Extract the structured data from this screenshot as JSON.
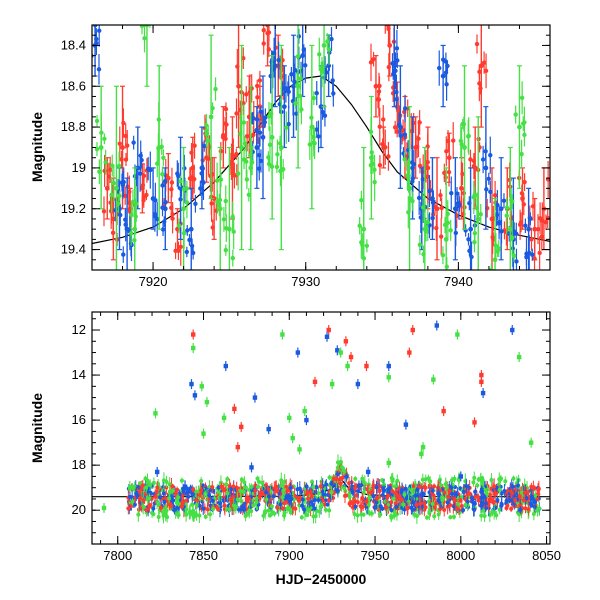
{
  "colors": {
    "red": "#ff3b2f",
    "blue": "#1a5ae0",
    "green": "#44e044",
    "model": "#000000",
    "frame": "#000000"
  },
  "chart_data": [
    {
      "type": "scatter",
      "name": "zoom-panel",
      "xlabel": "",
      "ylabel": "Magnitude",
      "xlim": [
        7916,
        7946
      ],
      "ylim": [
        18.3,
        19.5
      ],
      "y_inverted": true,
      "x_ticks": [
        7920,
        7930,
        7940
      ],
      "x_ticklabels": [
        "7920",
        "7930",
        "7940"
      ],
      "y_ticks": [
        18.4,
        18.6,
        18.8,
        19,
        19.2,
        19.4
      ],
      "y_ticklabels": [
        "18.4",
        "18.6",
        "18.8",
        "19",
        "19.2",
        "19.4"
      ],
      "model_curve": {
        "x": [
          7916,
          7918,
          7920,
          7922,
          7924,
          7926,
          7927,
          7928,
          7929,
          7930,
          7931,
          7932,
          7933,
          7934,
          7935,
          7936,
          7938,
          7940,
          7942,
          7944,
          7946
        ],
        "y": [
          19.37,
          19.34,
          19.29,
          19.2,
          19.07,
          18.9,
          18.79,
          18.68,
          18.6,
          18.56,
          18.55,
          18.6,
          18.69,
          18.8,
          18.92,
          19.02,
          19.15,
          19.23,
          19.29,
          19.33,
          19.36
        ]
      },
      "series": [
        {
          "color": "red",
          "points": [
            [
              7917.0,
              19.1,
              0.15
            ],
            [
              7917.4,
              19.25,
              0.2
            ],
            [
              7918.0,
              18.9,
              0.3
            ],
            [
              7918.5,
              19.2,
              0.1
            ],
            [
              7919.3,
              19.1,
              0.12
            ],
            [
              7921.0,
              19.05,
              0.12
            ],
            [
              7921.6,
              19.3,
              0.1
            ],
            [
              7922.6,
              19.0,
              0.15
            ],
            [
              7923.5,
              18.95,
              0.12
            ],
            [
              7924.0,
              19.15,
              0.2
            ],
            [
              7924.6,
              18.85,
              0.15
            ],
            [
              7925.2,
              19.0,
              0.25
            ],
            [
              7925.6,
              18.6,
              0.3
            ],
            [
              7926.3,
              18.75,
              0.2
            ],
            [
              7927.0,
              18.7,
              0.1
            ],
            [
              7927.5,
              18.3,
              0.2
            ],
            [
              7928.2,
              18.5,
              0.15
            ],
            [
              7934.6,
              18.6,
              0.15
            ],
            [
              7935.1,
              18.9,
              0.1
            ],
            [
              7935.5,
              18.4,
              0.15
            ],
            [
              7936.0,
              18.7,
              0.12
            ],
            [
              7936.5,
              18.85,
              0.2
            ],
            [
              7937.2,
              18.9,
              0.15
            ],
            [
              7938.0,
              19.0,
              0.2
            ],
            [
              7938.6,
              19.2,
              0.25
            ],
            [
              7939.4,
              18.95,
              0.12
            ],
            [
              7940.2,
              19.1,
              0.15
            ],
            [
              7941.1,
              19.0,
              0.2
            ],
            [
              7941.5,
              18.5,
              0.3
            ],
            [
              7942.2,
              19.25,
              0.25
            ],
            [
              7943.2,
              19.2,
              0.2
            ],
            [
              7944.2,
              19.15,
              0.15
            ],
            [
              7945.0,
              19.3,
              0.15
            ],
            [
              7945.6,
              19.2,
              0.2
            ]
          ]
        },
        {
          "color": "blue",
          "points": [
            [
              7916.2,
              18.4,
              0.15
            ],
            [
              7917.8,
              19.2,
              0.2
            ],
            [
              7918.3,
              19.3,
              0.25
            ],
            [
              7919.0,
              19.0,
              0.2
            ],
            [
              7920.0,
              19.15,
              0.15
            ],
            [
              7920.8,
              19.2,
              0.2
            ],
            [
              7921.8,
              19.1,
              0.25
            ],
            [
              7922.5,
              19.3,
              0.2
            ],
            [
              7923.2,
              19.0,
              0.2
            ],
            [
              7926.8,
              18.9,
              0.2
            ],
            [
              7927.2,
              18.85,
              0.3
            ],
            [
              7928.0,
              18.5,
              0.2
            ],
            [
              7928.6,
              18.7,
              0.2
            ],
            [
              7929.2,
              18.6,
              0.25
            ],
            [
              7929.8,
              18.45,
              0.2
            ],
            [
              7931.0,
              18.7,
              0.2
            ],
            [
              7931.5,
              18.5,
              0.15
            ],
            [
              7935.8,
              18.5,
              0.2
            ],
            [
              7936.2,
              18.8,
              0.3
            ],
            [
              7937.0,
              19.0,
              0.25
            ],
            [
              7937.6,
              19.2,
              0.2
            ],
            [
              7938.3,
              19.15,
              0.2
            ],
            [
              7939.0,
              18.55,
              0.15
            ],
            [
              7939.8,
              19.2,
              0.25
            ],
            [
              7940.8,
              19.3,
              0.3
            ],
            [
              7941.8,
              19.0,
              0.3
            ],
            [
              7942.8,
              19.2,
              0.25
            ],
            [
              7943.6,
              19.35,
              0.3
            ],
            [
              7944.6,
              19.3,
              0.2
            ]
          ]
        },
        {
          "color": "green",
          "points": [
            [
              7916.6,
              18.9,
              0.3
            ],
            [
              7917.6,
              19.1,
              0.5
            ],
            [
              7918.8,
              19.3,
              0.3
            ],
            [
              7919.6,
              18.3,
              0.3
            ],
            [
              7920.4,
              18.9,
              0.4
            ],
            [
              7922.0,
              19.2,
              0.3
            ],
            [
              7923.8,
              18.75,
              0.4
            ],
            [
              7924.4,
              19.2,
              0.3
            ],
            [
              7925.0,
              19.3,
              0.4
            ],
            [
              7925.8,
              18.9,
              0.5
            ],
            [
              7926.4,
              19.0,
              0.4
            ],
            [
              7927.8,
              18.85,
              0.4
            ],
            [
              7928.4,
              18.9,
              0.5
            ],
            [
              7929.5,
              18.6,
              0.4
            ],
            [
              7930.4,
              18.8,
              0.4
            ],
            [
              7931.2,
              18.4,
              0.3
            ],
            [
              7933.8,
              19.3,
              0.4
            ],
            [
              7934.3,
              18.95,
              0.3
            ],
            [
              7936.8,
              19.1,
              0.4
            ],
            [
              7937.8,
              19.3,
              0.4
            ],
            [
              7939.2,
              19.35,
              0.35
            ],
            [
              7940.4,
              18.9,
              0.4
            ],
            [
              7941.3,
              19.25,
              0.5
            ],
            [
              7942.4,
              19.45,
              0.3
            ],
            [
              7943.4,
              19.3,
              0.4
            ],
            [
              7944.0,
              18.8,
              0.3
            ]
          ]
        }
      ]
    },
    {
      "type": "scatter",
      "name": "full-panel",
      "xlabel": "HJD−2450000",
      "ylabel": "Magnitude",
      "xlim": [
        7785,
        8052
      ],
      "ylim": [
        11.2,
        21.5
      ],
      "y_inverted": true,
      "x_ticks": [
        7800,
        7850,
        7900,
        7950,
        8000,
        8050
      ],
      "x_ticklabels": [
        "7800",
        "7850",
        "7900",
        "7950",
        "8000",
        "8050"
      ],
      "y_ticks": [
        12,
        14,
        16,
        18,
        20
      ],
      "y_ticklabels": [
        "12",
        "14",
        "16",
        "18",
        "20"
      ],
      "model_curve": {
        "x": [
          7785,
          7850,
          7900,
          7915,
          7925,
          7930,
          7935,
          7945,
          7960,
          8000,
          8052
        ],
        "y": [
          19.4,
          19.4,
          19.38,
          19.3,
          19.05,
          18.6,
          19.05,
          19.3,
          19.38,
          19.4,
          19.4
        ]
      },
      "outliers": {
        "red": [
          [
            7844,
            12.2
          ],
          [
            7868,
            15.5
          ],
          [
            7872,
            16.3
          ],
          [
            7923,
            12.0
          ],
          [
            7933,
            12.5
          ],
          [
            7936,
            13.2
          ],
          [
            7945,
            13.6
          ],
          [
            7970,
            13.0
          ],
          [
            7972,
            12.0
          ],
          [
            7990,
            15.6
          ],
          [
            8008,
            16.1
          ],
          [
            8012,
            14.3
          ],
          [
            8012,
            14.0
          ],
          [
            7915,
            14.3
          ],
          [
            7870,
            17.2
          ]
        ],
        "blue": [
          [
            7843,
            14.4
          ],
          [
            7845,
            14.9
          ],
          [
            7863,
            13.6
          ],
          [
            7880,
            15.0
          ],
          [
            7888,
            16.4
          ],
          [
            7905,
            13.0
          ],
          [
            7910,
            16.0
          ],
          [
            7922,
            12.3
          ],
          [
            7928,
            12.9
          ],
          [
            7940,
            14.4
          ],
          [
            7958,
            13.6
          ],
          [
            7968,
            16.2
          ],
          [
            7986,
            11.8
          ],
          [
            8013,
            14.8
          ],
          [
            8030,
            12.0
          ],
          [
            7823,
            18.3
          ],
          [
            7878,
            18.1
          ],
          [
            7946,
            18.3
          ],
          [
            8000,
            18.5
          ]
        ],
        "green": [
          [
            7792,
            19.9
          ],
          [
            7822,
            15.7
          ],
          [
            7844,
            12.8
          ],
          [
            7849,
            14.5
          ],
          [
            7852,
            15.2
          ],
          [
            7850,
            16.6
          ],
          [
            7862,
            15.9
          ],
          [
            7896,
            12.2
          ],
          [
            7900,
            15.9
          ],
          [
            7902,
            16.8
          ],
          [
            7909,
            15.6
          ],
          [
            7925,
            14.4
          ],
          [
            7930,
            13.0
          ],
          [
            7934,
            13.6
          ],
          [
            7958,
            14.1
          ],
          [
            7977,
            17.5
          ],
          [
            7984,
            14.2
          ],
          [
            7998,
            12.2
          ],
          [
            8034,
            13.2
          ],
          [
            8041,
            17.0
          ],
          [
            7906,
            17.3
          ],
          [
            7958,
            17.9
          ],
          [
            7978,
            17.2
          ]
        ]
      }
    }
  ]
}
